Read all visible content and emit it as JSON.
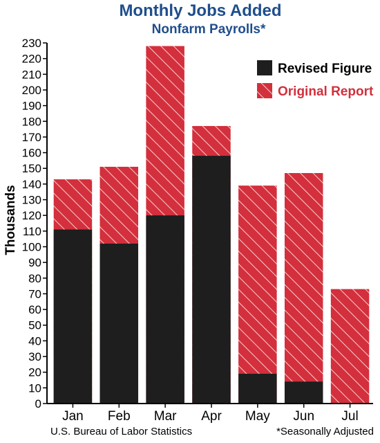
{
  "chart_data": {
    "type": "bar",
    "title": "Monthly Jobs Added",
    "subtitle": "Nonfarm Payrolls*",
    "ylabel": "Thousands",
    "xlabel": "",
    "ylim": [
      0,
      230
    ],
    "ytick_step": 10,
    "categories": [
      "Jan",
      "Feb",
      "Mar",
      "Apr",
      "May",
      "Jun",
      "Jul"
    ],
    "series": [
      {
        "name": "Revised Figure",
        "values": [
          111,
          102,
          120,
          158,
          19,
          14,
          0
        ]
      },
      {
        "name": "Original Report",
        "values": [
          143,
          151,
          228,
          177,
          139,
          147,
          73
        ]
      }
    ],
    "legend_position": "top-right",
    "grid": false,
    "source": "U.S. Bureau of Labor Statistics",
    "note": "*Seasonally Adjusted",
    "colors": {
      "title": "#1f4e8c",
      "revised": "#1e1e1e",
      "original": "#d32f3c",
      "original_legend_text": "#d32f3c",
      "hatch": "#f2c4c8"
    }
  }
}
